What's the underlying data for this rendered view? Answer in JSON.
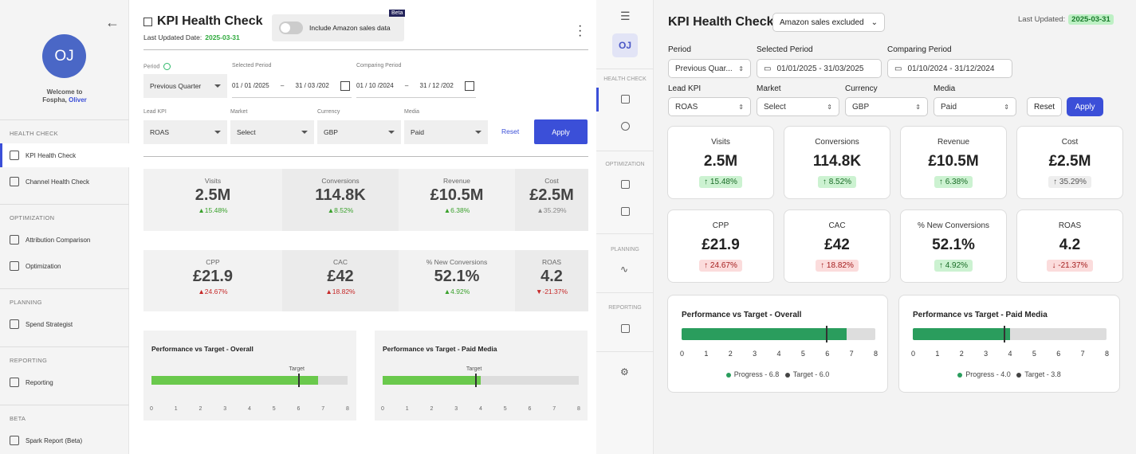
{
  "left_sidebar": {
    "avatar_initials": "OJ",
    "welcome_line1": "Welcome to",
    "welcome_org": "Fospha,",
    "welcome_user": "Oliver",
    "sections": [
      {
        "title": "HEALTH CHECK",
        "items": [
          "KPI Health Check",
          "Channel Health Check"
        ]
      },
      {
        "title": "OPTIMIZATION",
        "items": [
          "Attribution Comparison",
          "Optimization"
        ]
      },
      {
        "title": "PLANNING",
        "items": [
          "Spend Strategist"
        ]
      },
      {
        "title": "REPORTING",
        "items": [
          "Reporting"
        ]
      },
      {
        "title": "BETA",
        "items": [
          "Spark Report (Beta)"
        ]
      }
    ]
  },
  "left_main": {
    "title": "KPI Health Check",
    "last_updated_label": "Last Updated Date:",
    "last_updated_value": "2025-03-31",
    "toggle_label": "Include Amazon sales data",
    "beta_badge": "Beta",
    "filters": {
      "period_label": "Period",
      "period_value": "Previous Quarter",
      "selected_period_label": "Selected Period",
      "selected_from": "01 / 01 /2025",
      "selected_sep": "–",
      "selected_to": "31 / 03 /202",
      "comparing_period_label": "Comparing Period",
      "comparing_from": "01 / 10 /2024",
      "comparing_sep": "–",
      "comparing_to": "31 / 12 /202",
      "lead_kpi_label": "Lead KPI",
      "lead_kpi_value": "ROAS",
      "market_label": "Market",
      "market_value": "Select",
      "currency_label": "Currency",
      "currency_value": "GBP",
      "media_label": "Media",
      "media_value": "Paid",
      "reset": "Reset",
      "apply": "Apply"
    },
    "kpis": [
      {
        "label": "Visits",
        "value": "2.5M",
        "change": "▲15.48%",
        "status": "pos"
      },
      {
        "label": "Conversions",
        "value": "114.8K",
        "change": "▲8.52%",
        "status": "pos"
      },
      {
        "label": "Revenue",
        "value": "£10.5M",
        "change": "▲6.38%",
        "status": "pos"
      },
      {
        "label": "Cost",
        "value": "£2.5M",
        "change": "▲35.29%",
        "status": "neu"
      },
      {
        "label": "CPP",
        "value": "£21.9",
        "change": "▲24.67%",
        "status": "neg"
      },
      {
        "label": "CAC",
        "value": "£42",
        "change": "▲18.82%",
        "status": "neg"
      },
      {
        "label": "% New Conversions",
        "value": "52.1%",
        "change": "▲4.92%",
        "status": "pos"
      },
      {
        "label": "ROAS",
        "value": "4.2",
        "change": "▼-21.37%",
        "status": "neg"
      }
    ],
    "perf_cards": [
      {
        "title": "Performance vs Target - Overall",
        "target_label": "Target",
        "progress": 6.8,
        "target": 6.0
      },
      {
        "title": "Performance vs Target - Paid Media",
        "target_label": "Target",
        "progress": 4.0,
        "target": 3.8
      }
    ],
    "ticks": [
      "0",
      "1",
      "2",
      "3",
      "4",
      "5",
      "6",
      "7",
      "8"
    ]
  },
  "mid_bar": {
    "avatar_initials": "OJ",
    "sections": [
      "HEALTH CHECK",
      "OPTIMIZATION",
      "PLANNING",
      "REPORTING"
    ]
  },
  "right_main": {
    "title": "KPI Health Check",
    "amazon_dropdown": "Amazon sales excluded",
    "last_updated_label": "Last Updated:",
    "last_updated_value": "2025-03-31",
    "filters": {
      "period_label": "Period",
      "period_value": "Previous Quar...",
      "selected_period_label": "Selected Period",
      "selected_value": "01/01/2025 - 31/03/2025",
      "comparing_period_label": "Comparing Period",
      "comparing_value": "01/10/2024 - 31/12/2024",
      "lead_kpi_label": "Lead KPI",
      "lead_kpi_value": "ROAS",
      "market_label": "Market",
      "market_value": "Select",
      "currency_label": "Currency",
      "currency_value": "GBP",
      "media_label": "Media",
      "media_value": "Paid",
      "reset": "Reset",
      "apply": "Apply"
    },
    "kpis": [
      {
        "label": "Visits",
        "value": "2.5M",
        "change": "↑ 15.48%",
        "status": "pos"
      },
      {
        "label": "Conversions",
        "value": "114.8K",
        "change": "↑ 8.52%",
        "status": "pos"
      },
      {
        "label": "Revenue",
        "value": "£10.5M",
        "change": "↑ 6.38%",
        "status": "pos"
      },
      {
        "label": "Cost",
        "value": "£2.5M",
        "change": "↑ 35.29%",
        "status": "neu"
      },
      {
        "label": "CPP",
        "value": "£21.9",
        "change": "↑ 24.67%",
        "status": "neg"
      },
      {
        "label": "CAC",
        "value": "£42",
        "change": "↑ 18.82%",
        "status": "neg"
      },
      {
        "label": "% New Conversions",
        "value": "52.1%",
        "change": "↑ 4.92%",
        "status": "pos"
      },
      {
        "label": "ROAS",
        "value": "4.2",
        "change": "↓ -21.37%",
        "status": "neg"
      }
    ],
    "perf_cards": [
      {
        "title": "Performance vs Target - Overall",
        "progress": 6.8,
        "target": 6.0,
        "legend_progress": "Progress - 6.8",
        "legend_target": "Target - 6.0"
      },
      {
        "title": "Performance vs Target - Paid Media",
        "progress": 4.0,
        "target": 3.8,
        "legend_progress": "Progress - 4.0",
        "legend_target": "Target - 3.8"
      }
    ],
    "ticks": [
      "0",
      "1",
      "2",
      "3",
      "4",
      "5",
      "6",
      "7",
      "8"
    ],
    "colors": {
      "accent": "#3b4fd8",
      "progress": "#2a9d5d"
    }
  }
}
